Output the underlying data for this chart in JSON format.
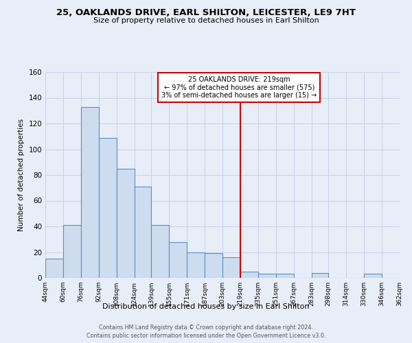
{
  "title_line1": "25, OAKLANDS DRIVE, EARL SHILTON, LEICESTER, LE9 7HT",
  "title_line2": "Size of property relative to detached houses in Earl Shilton",
  "xlabel": "Distribution of detached houses by size in Earl Shilton",
  "ylabel": "Number of detached properties",
  "tick_positions": [
    44,
    60,
    76,
    92,
    108,
    124,
    139,
    155,
    171,
    187,
    203,
    219,
    235,
    251,
    267,
    283,
    298,
    314,
    330,
    346,
    362
  ],
  "tick_labels": [
    "44sqm",
    "60sqm",
    "76sqm",
    "92sqm",
    "108sqm",
    "124sqm",
    "139sqm",
    "155sqm",
    "171sqm",
    "187sqm",
    "203sqm",
    "219sqm",
    "235sqm",
    "251sqm",
    "267sqm",
    "283sqm",
    "298sqm",
    "314sqm",
    "330sqm",
    "346sqm",
    "362sqm"
  ],
  "bin_lefts": [
    44,
    60,
    76,
    92,
    108,
    124,
    139,
    155,
    171,
    187,
    203,
    219,
    235,
    251,
    267,
    283,
    298,
    314,
    330,
    346
  ],
  "bin_rights": [
    60,
    76,
    92,
    108,
    124,
    139,
    155,
    171,
    187,
    203,
    219,
    235,
    251,
    267,
    283,
    298,
    314,
    330,
    346,
    362
  ],
  "bin_heights": [
    15,
    41,
    133,
    109,
    85,
    71,
    41,
    28,
    20,
    19,
    16,
    5,
    3,
    3,
    0,
    4,
    0,
    0,
    3,
    0
  ],
  "property_value": 219,
  "annotation_title": "25 OAKLANDS DRIVE: 219sqm",
  "annotation_line2": "← 97% of detached houses are smaller (575)",
  "annotation_line3": "3% of semi-detached houses are larger (15) →",
  "bar_face_color": "#cddcef",
  "bar_edge_color": "#5b8ec4",
  "vline_color": "#cc0000",
  "annotation_box_edge_color": "#cc0000",
  "background_color": "#e8eef8",
  "grid_color": "#c8d4e8",
  "ylim": [
    0,
    160
  ],
  "yticks": [
    0,
    20,
    40,
    60,
    80,
    100,
    120,
    140,
    160
  ],
  "footer_line1": "Contains HM Land Registry data © Crown copyright and database right 2024.",
  "footer_line2": "Contains public sector information licensed under the Open Government Licence v3.0."
}
